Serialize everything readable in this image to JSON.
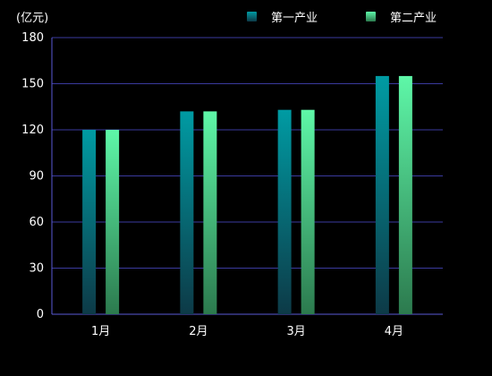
{
  "chart_data": {
    "type": "bar",
    "unit_label": "(亿元)",
    "categories": [
      "1月",
      "2月",
      "3月",
      "4月"
    ],
    "series": [
      {
        "name": "第一产业",
        "values": [
          120,
          132,
          133,
          155
        ],
        "color_top": "#009ba3",
        "color_bottom": "#0d3a47"
      },
      {
        "name": "第二产业",
        "values": [
          120,
          132,
          133,
          155
        ],
        "color_top": "#5ef7a8",
        "color_bottom": "#2c7a4e"
      }
    ],
    "yticks": [
      0,
      30,
      60,
      90,
      120,
      150,
      180
    ],
    "ylim": [
      0,
      180
    ],
    "grid": true,
    "legend_position": "top-right",
    "colors": {
      "axis": "#5a5ad6",
      "grid": "#3a3a9e",
      "text": "#ffffff",
      "background": "#000000"
    }
  }
}
